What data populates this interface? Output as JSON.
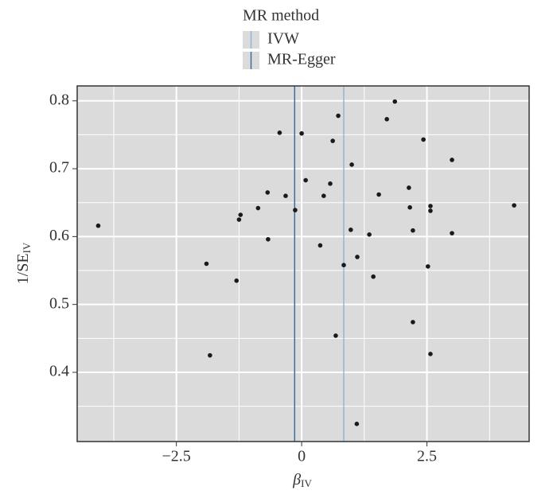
{
  "chart_data": {
    "type": "scatter",
    "legend_title": "MR method",
    "xlabel": {
      "main": "β",
      "sub": "IV"
    },
    "ylabel": {
      "main": "1/SE",
      "sub": "IV"
    },
    "x": [
      -4.06,
      -1.9,
      -1.83,
      -1.3,
      -1.25,
      -1.22,
      -0.87,
      -0.68,
      -0.67,
      -0.44,
      -0.32,
      -0.13,
      0.0,
      0.08,
      0.37,
      0.44,
      0.57,
      0.62,
      0.68,
      0.73,
      0.84,
      0.98,
      1.0,
      1.1,
      1.11,
      1.35,
      1.43,
      1.54,
      1.7,
      1.86,
      2.14,
      2.16,
      2.22,
      2.22,
      2.43,
      2.52,
      2.57,
      2.57,
      2.57,
      3.0,
      3.0,
      4.24
    ],
    "y": [
      0.616,
      0.56,
      0.425,
      0.535,
      0.625,
      0.632,
      0.642,
      0.665,
      0.596,
      0.753,
      0.66,
      0.639,
      0.752,
      0.683,
      0.587,
      0.66,
      0.678,
      0.741,
      0.454,
      0.778,
      0.558,
      0.61,
      0.706,
      0.324,
      0.57,
      0.603,
      0.541,
      0.662,
      0.773,
      0.799,
      0.672,
      0.643,
      0.609,
      0.474,
      0.743,
      0.556,
      0.645,
      0.638,
      0.427,
      0.713,
      0.605,
      0.646
    ],
    "color": "#1a1a1a",
    "lines": [
      {
        "name": "IVW",
        "x": 0.84,
        "color": "#8fb8d8"
      },
      {
        "name": "MR-Egger",
        "x": -0.14,
        "color": "#3b6e9c"
      }
    ],
    "xlim": [
      -4.48,
      4.54
    ],
    "ylim": [
      0.298,
      0.822
    ],
    "xticks": [
      {
        "value": -2.5,
        "label": "−2.5"
      },
      0,
      2.5
    ],
    "yticks": [
      0.4,
      0.5,
      0.6,
      0.7,
      0.8
    ],
    "xminor": [
      -3.75,
      -1.25,
      1.25,
      3.75
    ],
    "yminor": [
      0.35,
      0.45,
      0.55,
      0.65,
      0.75
    ],
    "grid": true
  }
}
